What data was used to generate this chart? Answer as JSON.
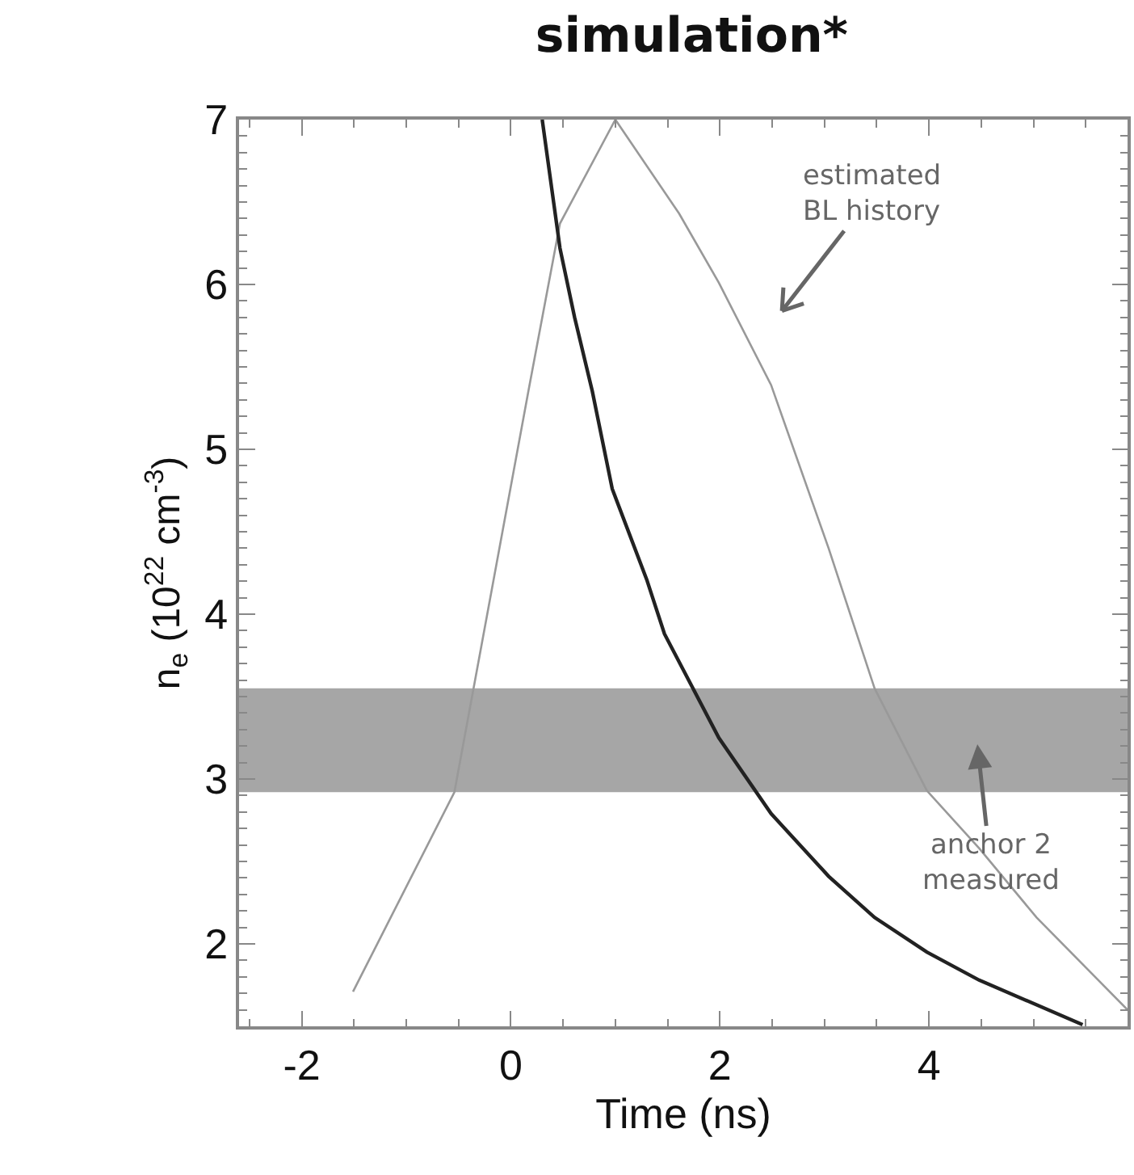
{
  "chart_data": {
    "type": "line",
    "title": "simulation*",
    "xlabel": "Time (ns)",
    "ylabel": "n$_{e}$ (10$^{22}$ cm$^{-3}$)",
    "xlim": [
      -2.6,
      5.9
    ],
    "xticks": [
      -2,
      0,
      2,
      4
    ],
    "ylim": [
      1.5,
      7
    ],
    "yticks": [
      2,
      3,
      4,
      5,
      6,
      7
    ],
    "series": [
      {
        "color": "#999999",
        "x": [
          -1.51,
          -0.54,
          0.17,
          0.47,
          1.0,
          1.61,
          1.99,
          2.49,
          3.04,
          3.48,
          3.98,
          4.48,
          5.03,
          5.9
        ],
        "values": [
          1.71,
          2.92,
          5.36,
          6.37,
          7.0,
          6.43,
          6.01,
          5.39,
          4.4,
          3.55,
          2.93,
          2.58,
          2.16,
          1.6
        ]
      },
      {
        "color": "#222222",
        "x": [
          0.3,
          0.47,
          0.61,
          0.78,
          0.97,
          1.3,
          1.47,
          1.99,
          2.49,
          3.04,
          3.48,
          3.98,
          4.48,
          5.47
        ],
        "values": [
          7.0,
          6.22,
          5.8,
          5.35,
          4.76,
          4.21,
          3.88,
          3.25,
          2.79,
          2.41,
          2.16,
          1.95,
          1.78,
          1.51
        ]
      }
    ],
    "bands": [
      {
        "axis": "y",
        "from": 2.92,
        "to": 3.55,
        "color": "#a6a6a6"
      }
    ],
    "annotations": [
      "estimated\nBL history",
      "anchor 2\nmeasured"
    ]
  }
}
